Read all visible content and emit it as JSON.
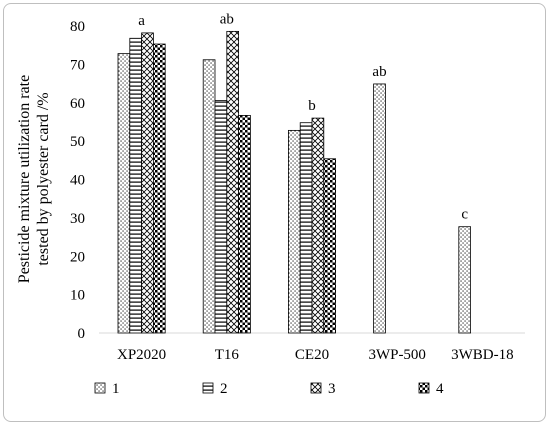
{
  "chart_data": {
    "type": "bar",
    "ylabel": "Pesticide mixture utilization rate tested by polyester card /%",
    "ylabel_lines": [
      "Pesticide mixture utilization rate",
      "tested by polyester card /%"
    ],
    "ylim": [
      0,
      80
    ],
    "yticks": [
      0,
      10,
      20,
      30,
      40,
      50,
      60,
      70,
      80
    ],
    "grid": false,
    "legend_position": "bottom",
    "categories": [
      "XP2020",
      "T16",
      "CE20",
      "3WP-500",
      "3WBD-18"
    ],
    "significance_letters": [
      "a",
      "ab",
      "b",
      "ab",
      "c"
    ],
    "series": [
      {
        "name": "1",
        "pattern": "dots",
        "values": [
          72.8,
          71.2,
          52.8,
          64.9,
          27.7
        ]
      },
      {
        "name": "2",
        "pattern": "horizontal-lines",
        "values": [
          76.8,
          60.6,
          54.8,
          null,
          null
        ]
      },
      {
        "name": "3",
        "pattern": "crosshatch",
        "values": [
          78.2,
          78.6,
          56.0,
          null,
          null
        ]
      },
      {
        "name": "4",
        "pattern": "checker",
        "values": [
          75.3,
          56.7,
          45.4,
          null,
          null
        ]
      }
    ]
  }
}
